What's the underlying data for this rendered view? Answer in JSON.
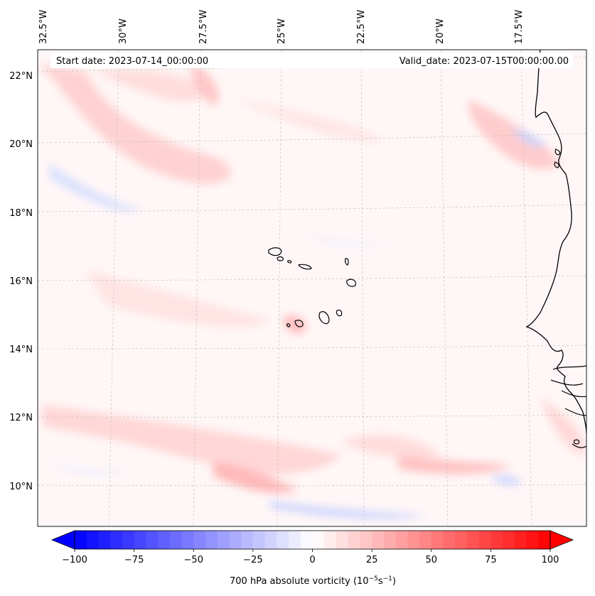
{
  "header": {
    "start_date": "Start date: 2023-07-14_00:00:00",
    "valid_date": "Valid_date: 2023-07-15T00:00:00.00"
  },
  "map": {
    "lat_labels": [
      "22°N",
      "20°N",
      "18°N",
      "16°N",
      "14°N",
      "12°N",
      "10°N"
    ],
    "lon_labels": [
      "32.5°W",
      "30°W",
      "27.5°W",
      "25°W",
      "22.5°W",
      "20°W",
      "17.5°W"
    ],
    "field": "700 hPa absolute vorticity",
    "colormap": "bwr",
    "colors": {
      "negative": "#0000ff",
      "zero": "#ffffff",
      "positive": "#ff0000",
      "coast": "#000000",
      "grid": "#bbbbbb"
    }
  },
  "colorbar": {
    "ticks": [
      "−100",
      "−75",
      "−50",
      "−25",
      "0",
      "25",
      "50",
      "75",
      "100"
    ],
    "tick_values": [
      -100,
      -75,
      -50,
      -25,
      0,
      25,
      50,
      75,
      100
    ],
    "vmin": -100,
    "vmax": 100,
    "label_main": "700 hPa absolute vorticity (10",
    "label_exp1": "−5",
    "label_mid": "s",
    "label_exp2": "−1",
    "label_end": ")",
    "extend": "both"
  }
}
